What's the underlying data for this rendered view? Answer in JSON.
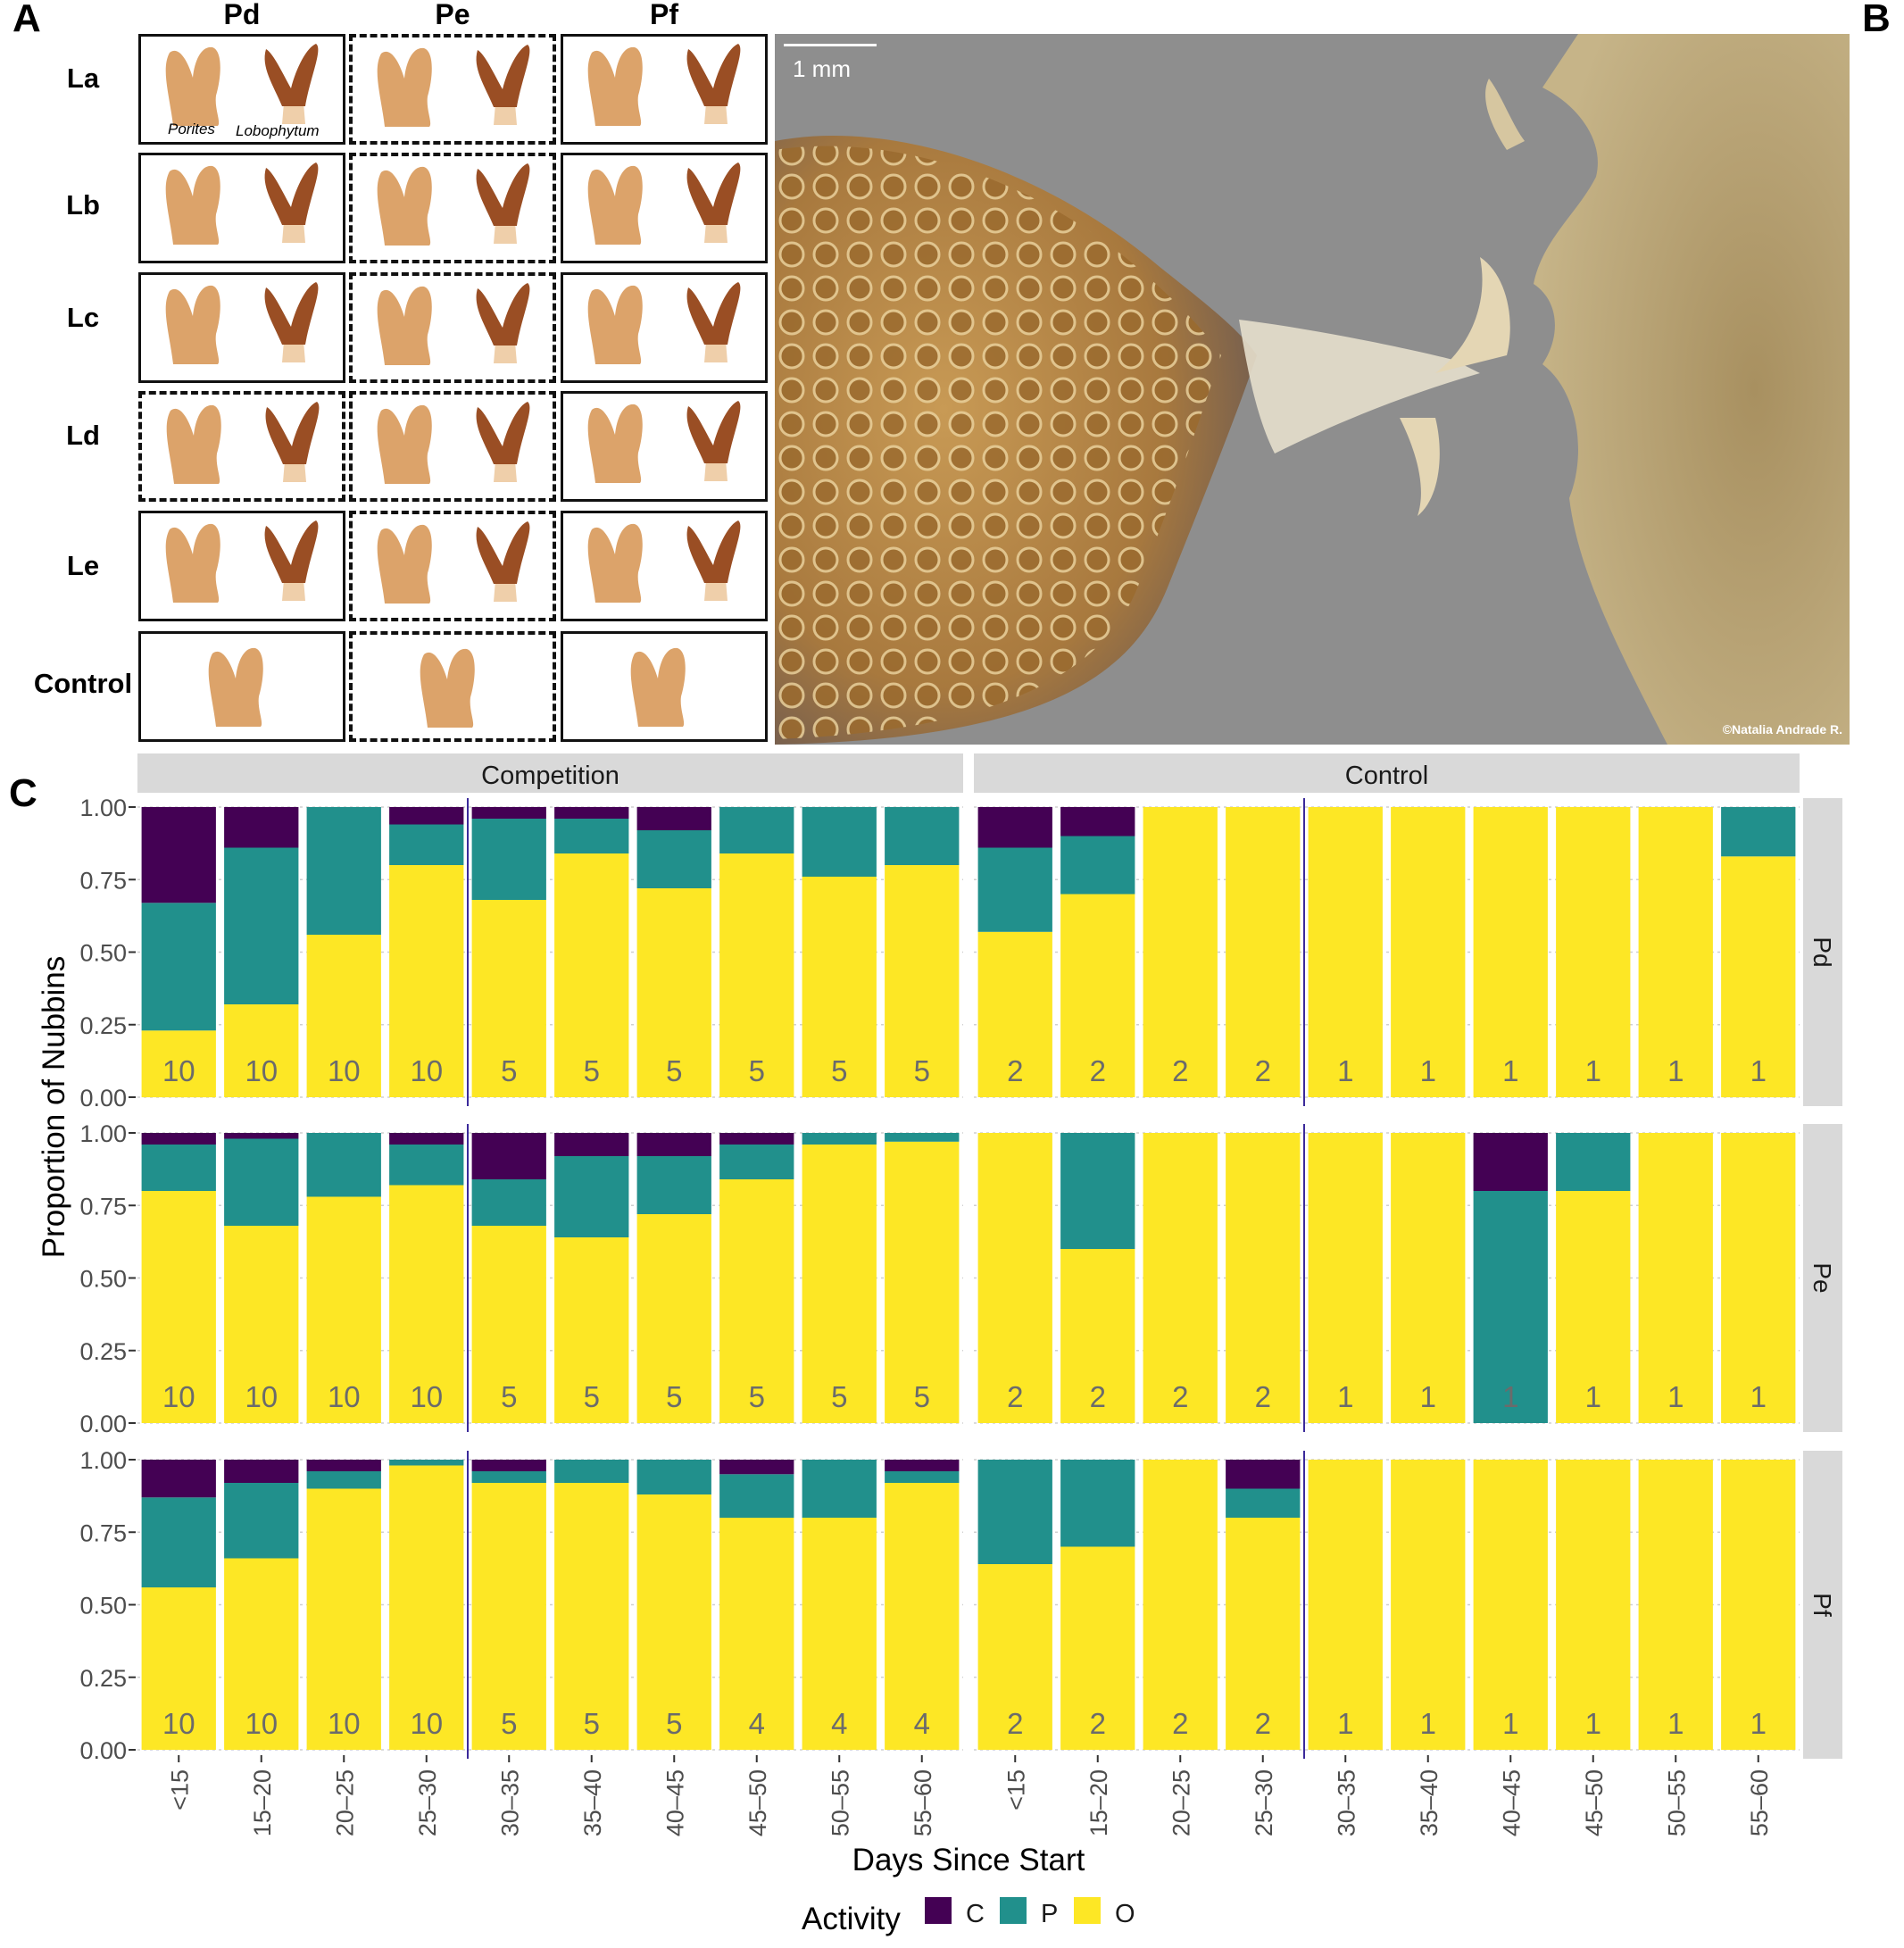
{
  "panel_a": {
    "label": "A",
    "columns": [
      "Pd",
      "Pe",
      "Pf"
    ],
    "rows": [
      "La",
      "Lb",
      "Lc",
      "Ld",
      "Le",
      "Control"
    ],
    "species_labels": [
      "Porites",
      "Lobophytum"
    ],
    "border_styles": [
      [
        "solid",
        "dashed",
        "solid"
      ],
      [
        "solid",
        "dashed",
        "solid"
      ],
      [
        "solid",
        "dashed",
        "solid"
      ],
      [
        "dashed",
        "dashed",
        "solid"
      ],
      [
        "solid",
        "dashed",
        "solid"
      ],
      [
        "solid",
        "dashed",
        "solid"
      ]
    ],
    "colors": {
      "porites": "#dca36a",
      "lobophytum": "#9a4e24",
      "lobophytum_base": "#efcfaa"
    }
  },
  "panel_b": {
    "label": "B",
    "scale_bar": "1 mm",
    "credit": "©Natalia Andrade R.",
    "colors": {
      "background": "#8e8e8e",
      "coral": "#b5894a",
      "tissue": "#e6dfcc"
    }
  },
  "chart_data": {
    "label": "C",
    "type": "bar",
    "stacked": true,
    "ylabel": "Proportion of Nubbins",
    "xlabel": "Days Since Start",
    "ylim": [
      0,
      1
    ],
    "yticks": [
      "0.00",
      "0.25",
      "0.50",
      "0.75",
      "1.00"
    ],
    "categories": [
      "<15",
      "15–20",
      "20–25",
      "25–30",
      "30–35",
      "35–40",
      "40–45",
      "45–50",
      "50–55",
      "55–60"
    ],
    "facet_columns": [
      "Competition",
      "Control"
    ],
    "facet_rows": [
      "Pd",
      "Pe",
      "Pf"
    ],
    "divider_after_category": 4,
    "legend": {
      "title": "Activity",
      "keys": [
        "C",
        "P",
        "O"
      ],
      "position": "bottom"
    },
    "colors": {
      "C": "#440154",
      "P": "#21908c",
      "O": "#fde725",
      "strip": "#d9d9d9",
      "divider": "#3b2a9a"
    },
    "series_order": [
      "O",
      "P",
      "C"
    ],
    "panels": [
      {
        "row": "Pd",
        "col": "Competition",
        "O": [
          0.23,
          0.32,
          0.56,
          0.8,
          0.68,
          0.84,
          0.72,
          0.84,
          0.76,
          0.8
        ],
        "P": [
          0.44,
          0.54,
          0.44,
          0.14,
          0.28,
          0.12,
          0.2,
          0.16,
          0.24,
          0.2
        ],
        "C": [
          0.33,
          0.14,
          0.0,
          0.06,
          0.04,
          0.04,
          0.08,
          0.0,
          0.0,
          0.0
        ],
        "n": [
          "10",
          "10",
          "10",
          "10",
          "5",
          "5",
          "5",
          "5",
          "5",
          "5"
        ]
      },
      {
        "row": "Pd",
        "col": "Control",
        "O": [
          0.57,
          0.7,
          1.0,
          1.0,
          1.0,
          1.0,
          1.0,
          1.0,
          1.0,
          0.83
        ],
        "P": [
          0.29,
          0.2,
          0.0,
          0.0,
          0.0,
          0.0,
          0.0,
          0.0,
          0.0,
          0.17
        ],
        "C": [
          0.14,
          0.1,
          0.0,
          0.0,
          0.0,
          0.0,
          0.0,
          0.0,
          0.0,
          0.0
        ],
        "n": [
          "2",
          "2",
          "2",
          "2",
          "1",
          "1",
          "1",
          "1",
          "1",
          "1"
        ]
      },
      {
        "row": "Pe",
        "col": "Competition",
        "O": [
          0.8,
          0.68,
          0.78,
          0.82,
          0.68,
          0.64,
          0.72,
          0.84,
          0.96,
          0.97
        ],
        "P": [
          0.16,
          0.3,
          0.22,
          0.14,
          0.16,
          0.28,
          0.2,
          0.12,
          0.04,
          0.03
        ],
        "C": [
          0.04,
          0.02,
          0.0,
          0.04,
          0.16,
          0.08,
          0.08,
          0.04,
          0.0,
          0.0
        ],
        "n": [
          "10",
          "10",
          "10",
          "10",
          "5",
          "5",
          "5",
          "5",
          "5",
          "5"
        ]
      },
      {
        "row": "Pe",
        "col": "Control",
        "O": [
          1.0,
          0.6,
          1.0,
          1.0,
          1.0,
          1.0,
          0.0,
          0.8,
          1.0,
          1.0
        ],
        "P": [
          0.0,
          0.4,
          0.0,
          0.0,
          0.0,
          0.0,
          0.8,
          0.2,
          0.0,
          0.0
        ],
        "C": [
          0.0,
          0.0,
          0.0,
          0.0,
          0.0,
          0.0,
          0.2,
          0.0,
          0.0,
          0.0
        ],
        "n": [
          "2",
          "2",
          "2",
          "2",
          "1",
          "1",
          "1",
          "1",
          "1",
          "1"
        ]
      },
      {
        "row": "Pf",
        "col": "Competition",
        "O": [
          0.56,
          0.66,
          0.9,
          0.98,
          0.92,
          0.92,
          0.88,
          0.8,
          0.8,
          0.92
        ],
        "P": [
          0.31,
          0.26,
          0.06,
          0.02,
          0.04,
          0.08,
          0.12,
          0.15,
          0.2,
          0.04
        ],
        "C": [
          0.13,
          0.08,
          0.04,
          0.0,
          0.04,
          0.0,
          0.0,
          0.05,
          0.0,
          0.04
        ],
        "n": [
          "10",
          "10",
          "10",
          "10",
          "5",
          "5",
          "5",
          "4",
          "4",
          "4"
        ]
      },
      {
        "row": "Pf",
        "col": "Control",
        "O": [
          0.64,
          0.7,
          1.0,
          0.8,
          1.0,
          1.0,
          1.0,
          1.0,
          1.0,
          1.0
        ],
        "P": [
          0.36,
          0.3,
          0.0,
          0.1,
          0.0,
          0.0,
          0.0,
          0.0,
          0.0,
          0.0
        ],
        "C": [
          0.0,
          0.0,
          0.0,
          0.1,
          0.0,
          0.0,
          0.0,
          0.0,
          0.0,
          0.0
        ],
        "n": [
          "2",
          "2",
          "2",
          "2",
          "1",
          "1",
          "1",
          "1",
          "1",
          "1"
        ]
      }
    ]
  }
}
